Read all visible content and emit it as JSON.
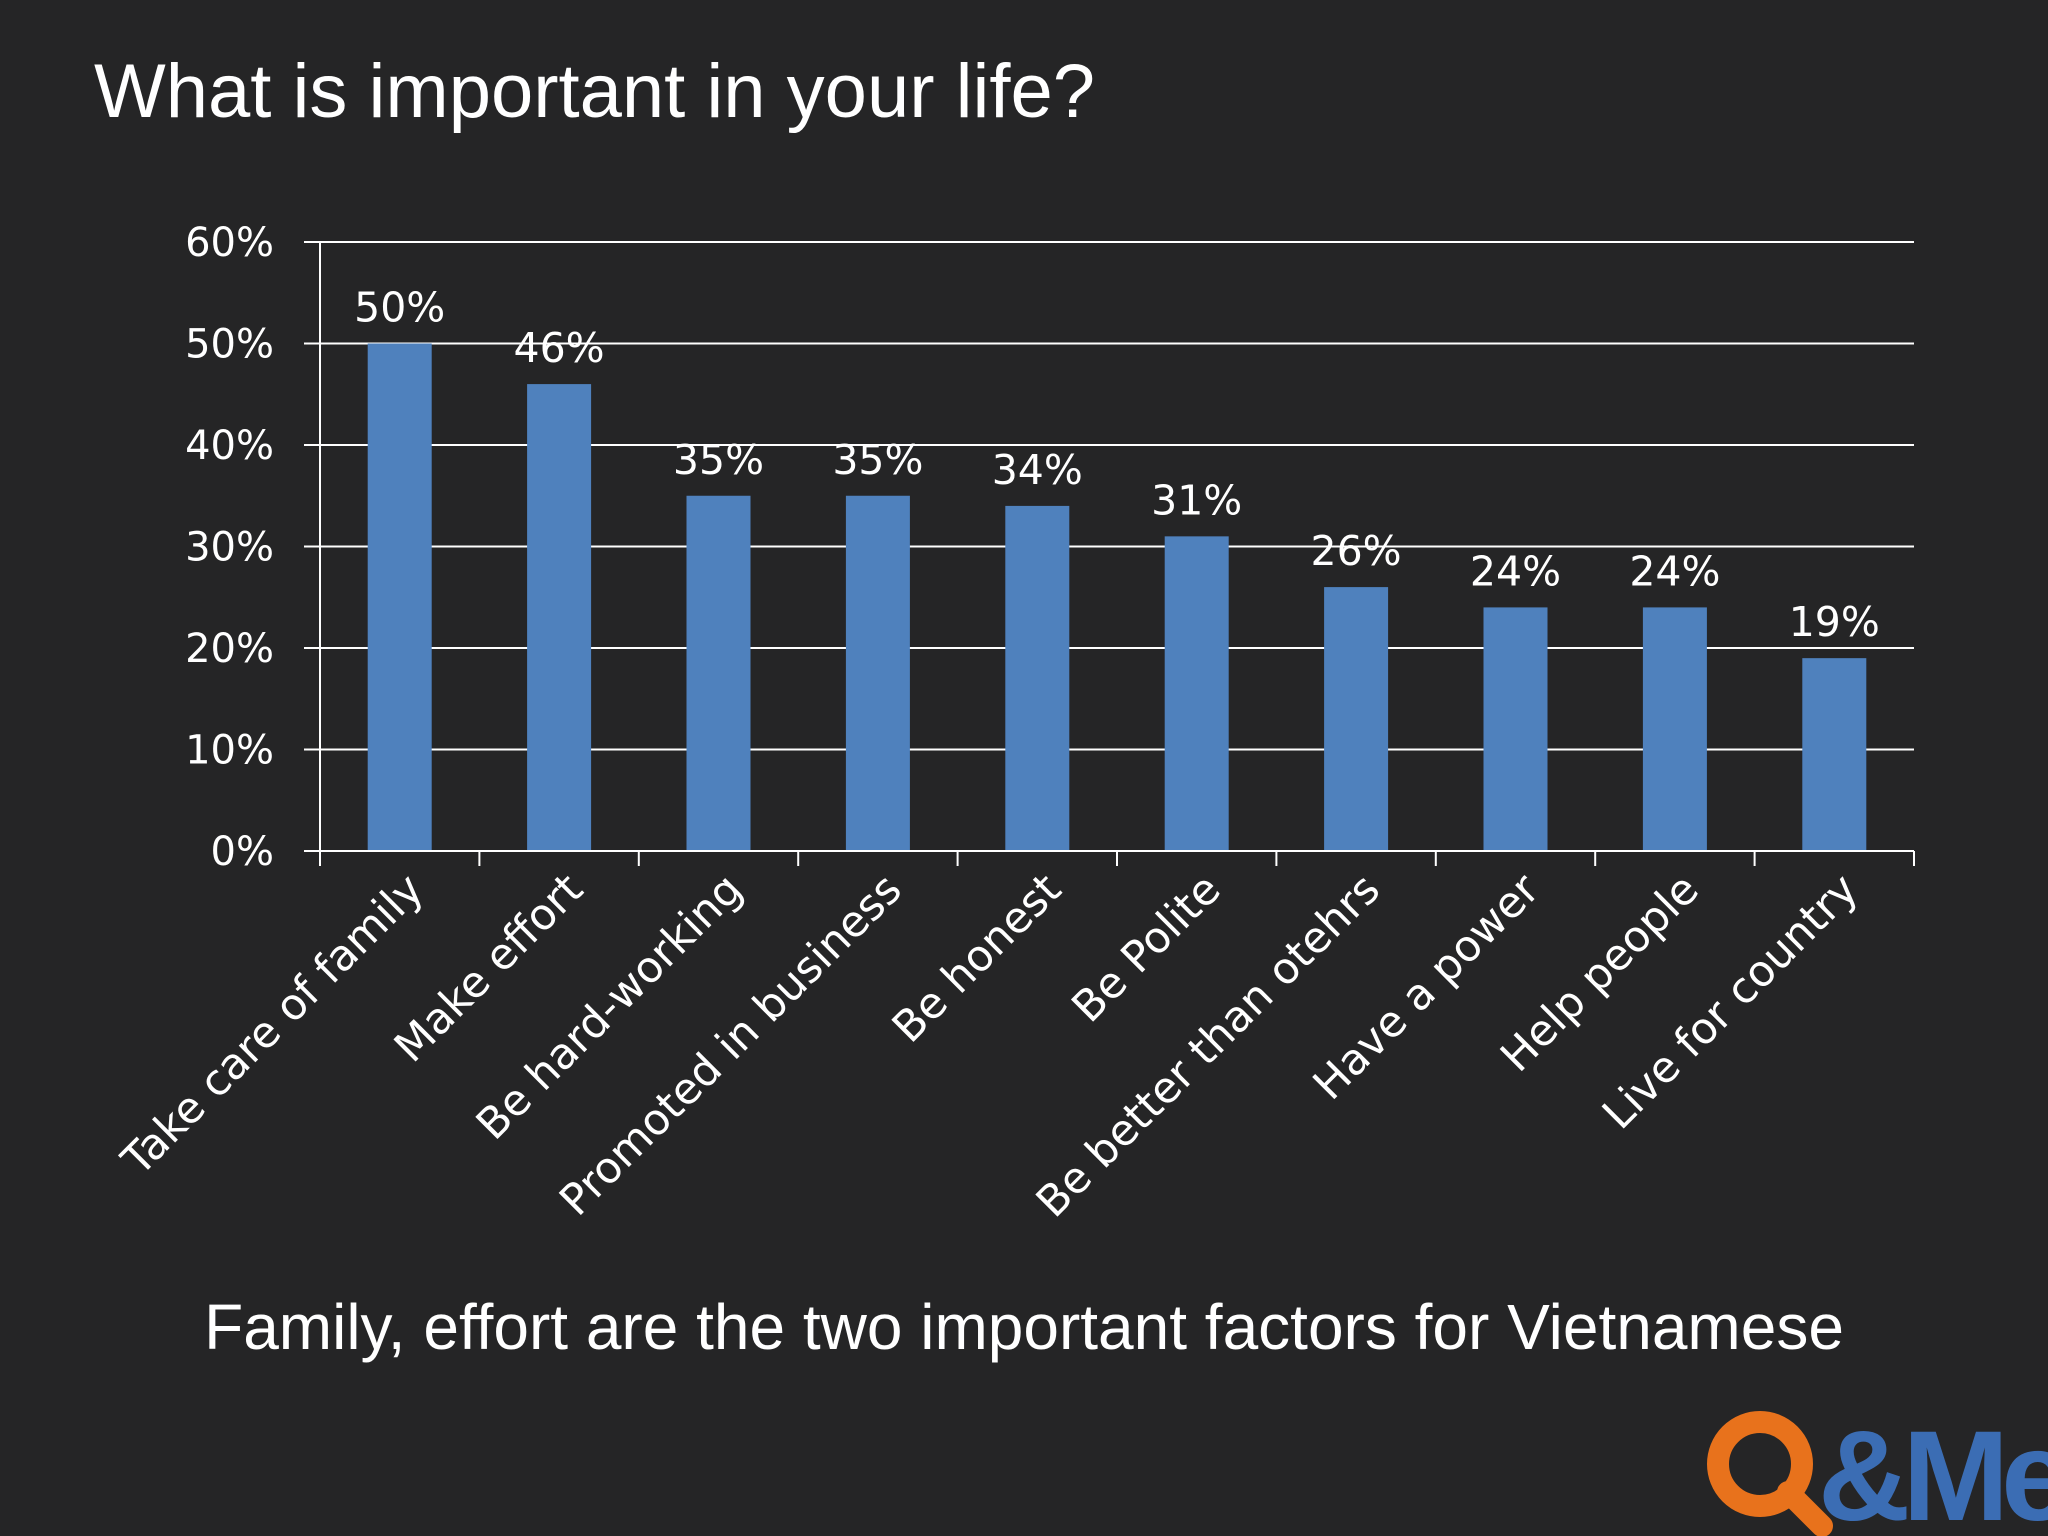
{
  "slide": {
    "title": "What is important in your life?",
    "caption": "Family, effort are the two important factors for Vietnamese"
  },
  "logo": {
    "text": "Q&Me",
    "q_color": "#E8721C",
    "rest_color": "#3B6DB4",
    "icon": "magnifier-q-icon"
  },
  "colors": {
    "background": "#252526",
    "bar": "#4F81BD",
    "grid": "#FFFFFF",
    "text": "#FFFFFF"
  },
  "chart_data": {
    "type": "bar",
    "title": "",
    "xlabel": "",
    "ylabel": "",
    "ylim": [
      0,
      60
    ],
    "yticks": [
      0,
      10,
      20,
      30,
      40,
      50,
      60
    ],
    "ytick_suffix": "%",
    "grid": true,
    "legend": "none",
    "categories": [
      "Take care of family",
      "Make effort",
      "Be hard-working",
      "Promoted in business",
      "Be honest",
      "Be Polite",
      "Be better than otehrs",
      "Have a power",
      "Help people",
      "Live for country"
    ],
    "values": [
      50,
      46,
      35,
      35,
      34,
      31,
      26,
      24,
      24,
      19
    ],
    "data_labels": [
      "50%",
      "46%",
      "35%",
      "35%",
      "34%",
      "31%",
      "26%",
      "24%",
      "24%",
      "19%"
    ]
  }
}
